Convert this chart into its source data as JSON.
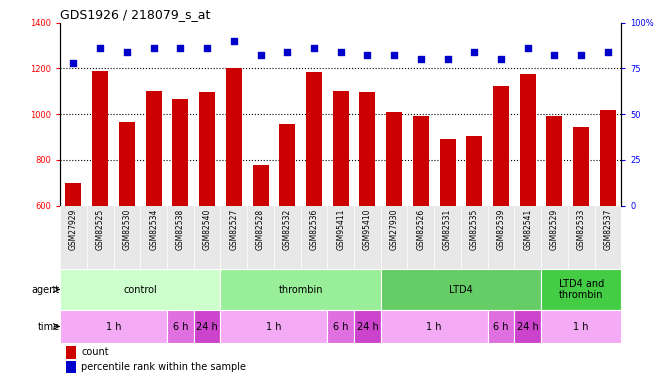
{
  "title": "GDS1926 / 218079_s_at",
  "samples": [
    "GSM27929",
    "GSM82525",
    "GSM82530",
    "GSM82534",
    "GSM82538",
    "GSM82540",
    "GSM82527",
    "GSM82528",
    "GSM82532",
    "GSM82536",
    "GSM95411",
    "GSM95410",
    "GSM27930",
    "GSM82526",
    "GSM82531",
    "GSM82535",
    "GSM82539",
    "GSM82541",
    "GSM82529",
    "GSM82533",
    "GSM82537"
  ],
  "counts": [
    700,
    1190,
    965,
    1100,
    1065,
    1095,
    1200,
    780,
    955,
    1185,
    1100,
    1095,
    1010,
    990,
    890,
    905,
    1125,
    1175,
    990,
    945,
    1020
  ],
  "percentiles": [
    78,
    86,
    84,
    86,
    86,
    86,
    90,
    82,
    84,
    86,
    84,
    82,
    82,
    80,
    80,
    84,
    80,
    86,
    82,
    82,
    84
  ],
  "ylim_left": [
    600,
    1400
  ],
  "ylim_right": [
    0,
    100
  ],
  "yticks_left": [
    600,
    800,
    1000,
    1200,
    1400
  ],
  "yticks_right": [
    0,
    25,
    50,
    75,
    100
  ],
  "bar_color": "#cc0000",
  "dot_color": "#0000cc",
  "agent_colors": [
    "#ccffcc",
    "#99ee99",
    "#66cc66",
    "#44cc44"
  ],
  "agent_groups": [
    {
      "label": "control",
      "start": 0,
      "end": 6
    },
    {
      "label": "thrombin",
      "start": 6,
      "end": 12
    },
    {
      "label": "LTD4",
      "start": 12,
      "end": 18
    },
    {
      "label": "LTD4 and\nthrombin",
      "start": 18,
      "end": 21
    }
  ],
  "time_colors": {
    "1 h": "#f5aaf5",
    "6 h": "#e070e0",
    "24 h": "#cc44cc"
  },
  "time_groups": [
    {
      "label": "1 h",
      "start": 0,
      "end": 4
    },
    {
      "label": "6 h",
      "start": 4,
      "end": 5
    },
    {
      "label": "24 h",
      "start": 5,
      "end": 6
    },
    {
      "label": "1 h",
      "start": 6,
      "end": 10
    },
    {
      "label": "6 h",
      "start": 10,
      "end": 11
    },
    {
      "label": "24 h",
      "start": 11,
      "end": 12
    },
    {
      "label": "1 h",
      "start": 12,
      "end": 16
    },
    {
      "label": "6 h",
      "start": 16,
      "end": 17
    },
    {
      "label": "24 h",
      "start": 17,
      "end": 18
    },
    {
      "label": "1 h",
      "start": 18,
      "end": 21
    }
  ],
  "grid_values": [
    800,
    1000,
    1200
  ],
  "label_fontsize": 7,
  "tick_fontsize": 6,
  "sample_fontsize": 5.5,
  "title_fontsize": 9
}
